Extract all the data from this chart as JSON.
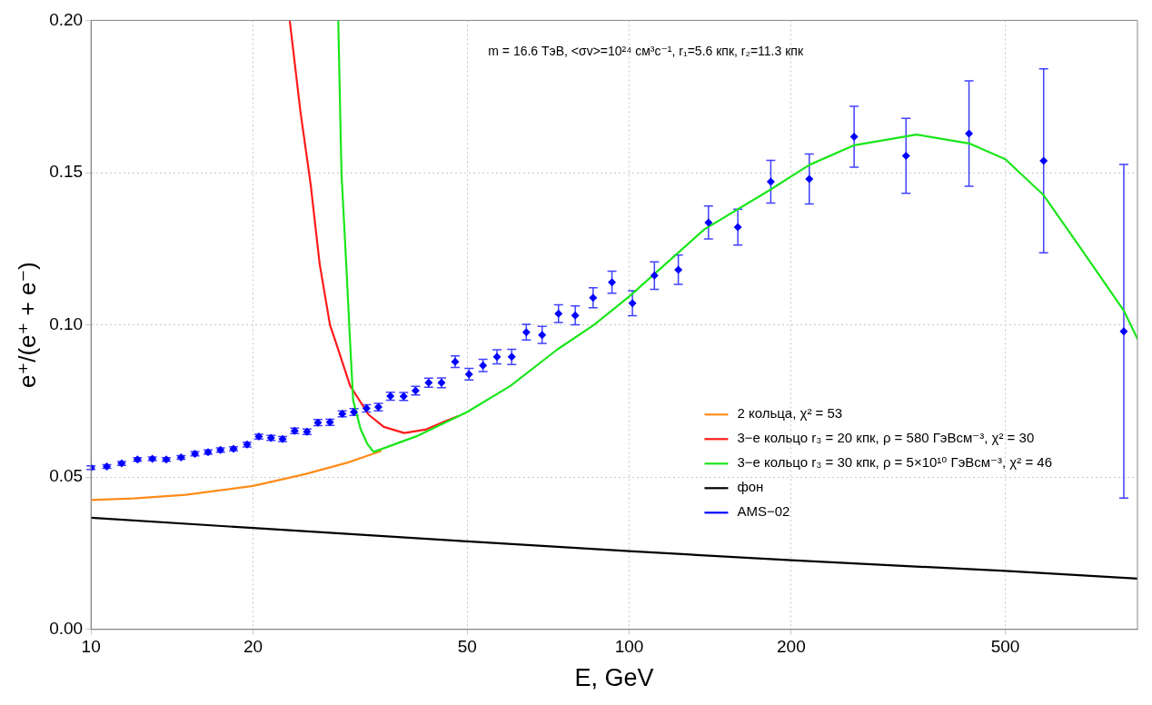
{
  "chart_data": {
    "type": "line",
    "xlabel": "E, GeV",
    "ylabel": "e⁺/(e⁺ + e⁻)",
    "annotations": [
      "m = 16.6 ТэВ, <σv>=10²⁴ см³c⁻¹, r₁=5.6 кпк, r₂=11.3 кпк"
    ],
    "log": "x",
    "xlim": [
      10,
      880
    ],
    "xticks": [
      10,
      20,
      50,
      100,
      200,
      500
    ],
    "ylim": [
      0,
      0.2
    ],
    "yticks": [
      {
        "value": 0,
        "label": "0.00"
      },
      {
        "value": 0.05,
        "label": "0.05"
      },
      {
        "value": 0.1,
        "label": "0.10"
      },
      {
        "value": 0.15,
        "label": "0.15"
      },
      {
        "value": 0.2,
        "label": "0.20"
      }
    ],
    "grid": true,
    "legend": "bottom right",
    "line_style": "solid",
    "series": [
      {
        "name": "2 кольца, χ² = 53",
        "color": "#ff8c1a",
        "x": [
          10,
          12,
          15,
          20,
          25,
          30,
          34.5
        ],
        "values": [
          0.0425,
          0.043,
          0.0442,
          0.0471,
          0.051,
          0.0548,
          0.0585
        ]
      },
      {
        "name": "3−е кольцо r₃ = 20 кпк, ρ = 580 ГэВсм⁻³, χ² = 30",
        "color": "#ff1a1a",
        "x": [
          23.4,
          24.5,
          25.6,
          26.6,
          27.8,
          28.5,
          30.3,
          32.8,
          35,
          38.2,
          42,
          45.6,
          48
        ],
        "values": [
          0.2,
          0.17,
          0.146,
          0.12,
          0.1,
          0.0943,
          0.08,
          0.0705,
          0.0665,
          0.0645,
          0.0657,
          0.0684,
          0.07
        ]
      },
      {
        "name": "3−е кольцо r₃ = 30 кпк, ρ = 5×10¹⁰ ГэВсм⁻³, χ² = 46",
        "color": "#1ae61a",
        "x": [
          28.8,
          29.2,
          29.8,
          30.3,
          30.7,
          31.7,
          32.6,
          33.5,
          35,
          40.5,
          50,
          60.2,
          73.5,
          86,
          100,
          138,
          183,
          216,
          262,
          342,
          428,
          500,
          589,
          690,
          830,
          880
        ],
        "values": [
          0.2,
          0.15,
          0.12,
          0.0943,
          0.0752,
          0.0657,
          0.061,
          0.0583,
          0.0595,
          0.0636,
          0.0714,
          0.08,
          0.0919,
          0.1,
          0.1093,
          0.1314,
          0.1444,
          0.1525,
          0.159,
          0.1625,
          0.1596,
          0.1544,
          0.1426,
          0.1252,
          0.1047,
          0.0954
        ]
      },
      {
        "name": "фон",
        "color": "#000000",
        "x": [
          10,
          20,
          50,
          100,
          200,
          500,
          880
        ],
        "values": [
          0.0367,
          0.0333,
          0.0289,
          0.0257,
          0.0227,
          0.0192,
          0.0167
        ]
      },
      {
        "name": "AMS−02",
        "type": "scatter",
        "marker": "diamond",
        "color": "#0000ff",
        "x": [
          10,
          10.7,
          11.4,
          12.2,
          13,
          13.8,
          14.7,
          15.6,
          16.5,
          17.4,
          18.4,
          19.5,
          20.5,
          21.6,
          22.7,
          23.9,
          25.2,
          26.4,
          27.8,
          29.3,
          30.8,
          32.5,
          34.2,
          36,
          38.1,
          40.1,
          42.4,
          44.8,
          47.5,
          50.4,
          53.5,
          56.8,
          60.5,
          64.4,
          68.9,
          73.9,
          79.4,
          85.7,
          92.9,
          101.4,
          111.4,
          123.4,
          140.4,
          159.2,
          183.3,
          216.1,
          261.8,
          326.9,
          428,
          589,
          830
        ],
        "values": [
          0.0531,
          0.0535,
          0.0545,
          0.0558,
          0.056,
          0.0558,
          0.0565,
          0.0577,
          0.0582,
          0.0589,
          0.0593,
          0.0607,
          0.0633,
          0.0629,
          0.0625,
          0.0652,
          0.0649,
          0.0679,
          0.068,
          0.0708,
          0.0714,
          0.0726,
          0.073,
          0.0766,
          0.0765,
          0.0784,
          0.081,
          0.081,
          0.0879,
          0.0838,
          0.0867,
          0.0895,
          0.0895,
          0.0976,
          0.0967,
          0.1037,
          0.1031,
          0.1089,
          0.114,
          0.1071,
          0.1162,
          0.1181,
          0.1336,
          0.1321,
          0.147,
          0.1479,
          0.1618,
          0.1555,
          0.1628,
          0.1539,
          0.0979
        ],
        "errors": [
          0.0006,
          0.0006,
          0.0006,
          0.0006,
          0.0006,
          0.0006,
          0.0006,
          0.0007,
          0.0007,
          0.0007,
          0.0007,
          0.0008,
          0.0008,
          0.0008,
          0.0008,
          0.0009,
          0.0009,
          0.001,
          0.001,
          0.001,
          0.0011,
          0.0012,
          0.0012,
          0.0013,
          0.0013,
          0.0014,
          0.0015,
          0.0016,
          0.0019,
          0.0019,
          0.002,
          0.0023,
          0.0025,
          0.0026,
          0.0028,
          0.0029,
          0.0031,
          0.0033,
          0.0036,
          0.0041,
          0.0045,
          0.0048,
          0.0054,
          0.0059,
          0.007,
          0.0082,
          0.01,
          0.0123,
          0.0173,
          0.0302,
          0.0548
        ]
      }
    ]
  }
}
